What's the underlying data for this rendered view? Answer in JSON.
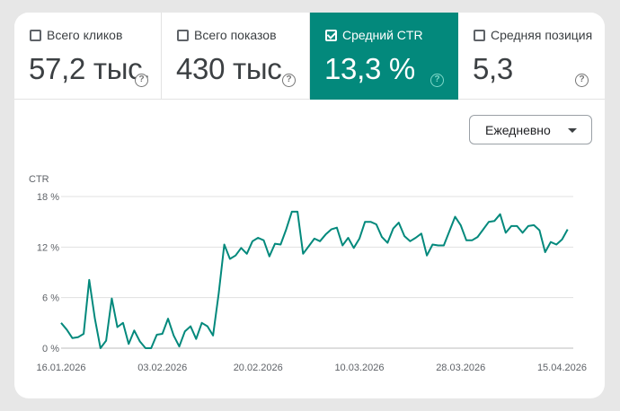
{
  "metrics": [
    {
      "label": "Всего кликов",
      "value": "57,2 тыс.",
      "checked": false
    },
    {
      "label": "Всего показов",
      "value": "430 тыс.",
      "checked": false
    },
    {
      "label": "Средний CTR",
      "value": "13,3 %",
      "checked": true
    },
    {
      "label": "Средняя позиция",
      "value": "5,3",
      "checked": false
    }
  ],
  "help_glyph": "?",
  "period_select": {
    "label": "Ежедневно",
    "icon": "dropdown-arrow-icon"
  },
  "colors": {
    "accent": "#03897c",
    "line": "#03897c",
    "grid": "#e0e0e0"
  },
  "chart_data": {
    "type": "line",
    "ylabel": "CTR",
    "ylim": [
      0,
      18
    ],
    "y_ticks": [
      0,
      6,
      12,
      18
    ],
    "y_tick_labels": [
      "0 %",
      "6 %",
      "12 %",
      "18 %"
    ],
    "x_tick_labels": [
      "16.01.2026",
      "03.02.2026",
      "20.02.2026",
      "10.03.2026",
      "28.03.2026",
      "15.04.2026"
    ],
    "xlim": [
      "2026-01-16",
      "2026-04-17"
    ],
    "grid": true,
    "series": [
      {
        "values": [
          [
            "2026-01-16",
            3.0
          ],
          [
            "2026-01-17",
            2.2
          ],
          [
            "2026-01-18",
            1.2
          ],
          [
            "2026-01-19",
            1.3
          ],
          [
            "2026-01-20",
            1.7
          ],
          [
            "2026-01-21",
            8.1
          ],
          [
            "2026-01-22",
            3.5
          ],
          [
            "2026-01-23",
            0.0
          ],
          [
            "2026-01-24",
            0.9
          ],
          [
            "2026-01-25",
            5.9
          ],
          [
            "2026-01-26",
            2.5
          ],
          [
            "2026-01-27",
            3.0
          ],
          [
            "2026-01-28",
            0.5
          ],
          [
            "2026-01-29",
            2.1
          ],
          [
            "2026-01-30",
            0.8
          ],
          [
            "2026-01-31",
            0.0
          ],
          [
            "2026-02-01",
            0.0
          ],
          [
            "2026-02-02",
            1.6
          ],
          [
            "2026-02-03",
            1.7
          ],
          [
            "2026-02-04",
            3.5
          ],
          [
            "2026-02-05",
            1.5
          ],
          [
            "2026-02-06",
            0.2
          ],
          [
            "2026-02-07",
            2.0
          ],
          [
            "2026-02-08",
            2.6
          ],
          [
            "2026-02-09",
            1.1
          ],
          [
            "2026-02-10",
            3.0
          ],
          [
            "2026-02-11",
            2.6
          ],
          [
            "2026-02-12",
            1.5
          ],
          [
            "2026-02-13",
            6.5
          ],
          [
            "2026-02-14",
            12.3
          ],
          [
            "2026-02-15",
            10.6
          ],
          [
            "2026-02-16",
            11.0
          ],
          [
            "2026-02-17",
            11.9
          ],
          [
            "2026-02-18",
            11.2
          ],
          [
            "2026-02-19",
            12.7
          ],
          [
            "2026-02-20",
            13.1
          ],
          [
            "2026-02-21",
            12.8
          ],
          [
            "2026-02-22",
            10.9
          ],
          [
            "2026-02-23",
            12.4
          ],
          [
            "2026-02-24",
            12.3
          ],
          [
            "2026-02-25",
            14.1
          ],
          [
            "2026-02-26",
            16.2
          ],
          [
            "2026-02-27",
            16.2
          ],
          [
            "2026-02-28",
            11.2
          ],
          [
            "2026-03-01",
            12.1
          ],
          [
            "2026-03-02",
            13.0
          ],
          [
            "2026-03-03",
            12.7
          ],
          [
            "2026-03-04",
            13.5
          ],
          [
            "2026-03-05",
            14.1
          ],
          [
            "2026-03-06",
            14.3
          ],
          [
            "2026-03-07",
            12.2
          ],
          [
            "2026-03-08",
            13.1
          ],
          [
            "2026-03-09",
            11.9
          ],
          [
            "2026-03-10",
            13.0
          ],
          [
            "2026-03-11",
            15.0
          ],
          [
            "2026-03-12",
            15.0
          ],
          [
            "2026-03-13",
            14.7
          ],
          [
            "2026-03-14",
            13.2
          ],
          [
            "2026-03-15",
            12.5
          ],
          [
            "2026-03-16",
            14.2
          ],
          [
            "2026-03-17",
            14.9
          ],
          [
            "2026-03-18",
            13.3
          ],
          [
            "2026-03-19",
            12.7
          ],
          [
            "2026-03-20",
            13.1
          ],
          [
            "2026-03-21",
            13.6
          ],
          [
            "2026-03-22",
            11.0
          ],
          [
            "2026-03-23",
            12.3
          ],
          [
            "2026-03-24",
            12.2
          ],
          [
            "2026-03-25",
            12.2
          ],
          [
            "2026-03-26",
            13.9
          ],
          [
            "2026-03-27",
            15.6
          ],
          [
            "2026-03-28",
            14.6
          ],
          [
            "2026-03-29",
            12.8
          ],
          [
            "2026-03-30",
            12.8
          ],
          [
            "2026-03-31",
            13.2
          ],
          [
            "2026-04-01",
            14.1
          ],
          [
            "2026-04-02",
            15.0
          ],
          [
            "2026-04-03",
            15.1
          ],
          [
            "2026-04-04",
            15.9
          ],
          [
            "2026-04-05",
            13.7
          ],
          [
            "2026-04-06",
            14.5
          ],
          [
            "2026-04-07",
            14.5
          ],
          [
            "2026-04-08",
            13.7
          ],
          [
            "2026-04-09",
            14.5
          ],
          [
            "2026-04-10",
            14.6
          ],
          [
            "2026-04-11",
            14.0
          ],
          [
            "2026-04-12",
            11.4
          ],
          [
            "2026-04-13",
            12.6
          ],
          [
            "2026-04-14",
            12.3
          ],
          [
            "2026-04-15",
            12.9
          ],
          [
            "2026-04-16",
            14.1
          ]
        ]
      }
    ]
  }
}
